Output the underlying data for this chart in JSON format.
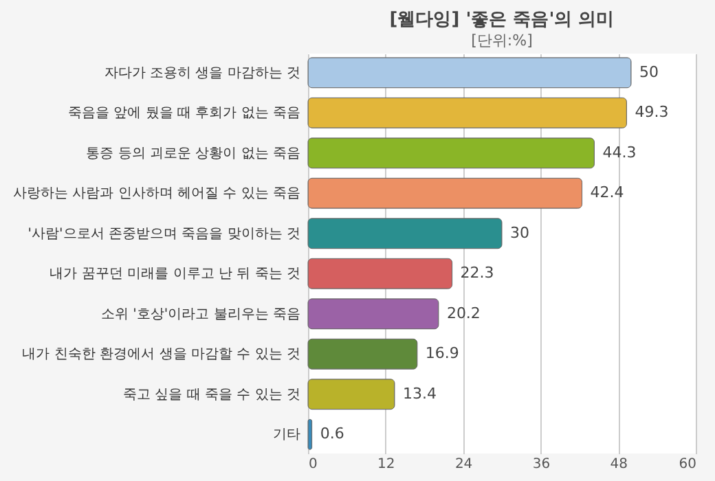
{
  "chart_data": {
    "type": "bar",
    "orientation": "horizontal",
    "title": "[웰다잉] '좋은 죽음'의 의미",
    "subtitle": "[단위:%]",
    "categories": [
      "자다가 조용히 생을 마감하는 것",
      "죽음을 앞에 뒀을 때 후회가 없는 죽음",
      "통증 등의 괴로운 상황이 없는 죽음",
      "사랑하는 사람과 인사하며 헤어질 수 있는 죽음",
      "'사람'으로서 존중받으며 죽음을 맞이하는 것",
      "내가 꿈꾸던 미래를 이루고 난 뒤 죽는 것",
      "소위 '호상'이라고 불리우는 죽음",
      "내가 친숙한 환경에서 생을 마감할 수 있는 것",
      "죽고 싶을 때 죽을 수 있는 것",
      "기타"
    ],
    "values": [
      50,
      49.3,
      44.3,
      42.4,
      30,
      22.3,
      20.2,
      16.9,
      13.4,
      0.6
    ],
    "colors": [
      "#a9c8e6",
      "#e2b63a",
      "#8ab527",
      "#ec9064",
      "#2a8f8f",
      "#d55f5f",
      "#9b62a6",
      "#5f8a3a",
      "#b9b22a",
      "#3a8ab8"
    ],
    "xlim": [
      0,
      60
    ],
    "xticks": [
      0,
      12,
      24,
      36,
      48,
      60
    ],
    "grid": "x",
    "data_labels": true
  }
}
